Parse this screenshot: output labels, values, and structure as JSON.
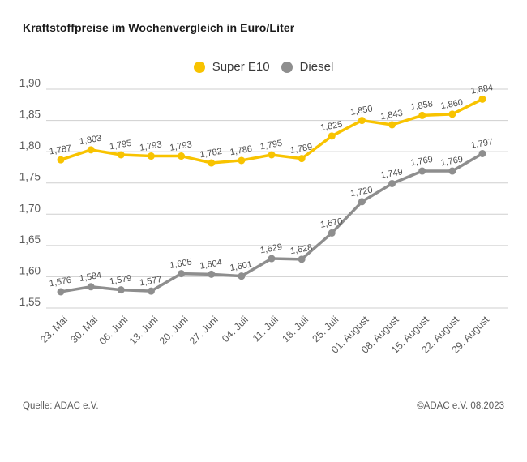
{
  "title": "Kraftstoffpreise im Wochenvergleich in Euro/Liter",
  "footer": {
    "source": "Quelle: ADAC e.V.",
    "copyright": "©ADAC e.V. 08.2023"
  },
  "colors": {
    "super_e10": "#F8C300",
    "diesel": "#8E8E8E",
    "gridline": "#CFCFCF",
    "axis_label": "#5A5A5A",
    "value_label": "#4D4D4D",
    "title_text": "#1A1A1A"
  },
  "chart_data": {
    "type": "line",
    "title": "Kraftstoffpreise im Wochenvergleich in Euro/Liter",
    "categories": [
      "23. Mai",
      "30. Mai",
      "06. Juni",
      "13. Juni",
      "20. Juni",
      "27. Juni",
      "04. Juli",
      "11. Juli",
      "18. Juli",
      "25. Juli",
      "01. August",
      "08. August",
      "15. August",
      "22. August",
      "29. August"
    ],
    "series": [
      {
        "name": "Super E10",
        "color": "#F8C300",
        "values": [
          1.787,
          1.803,
          1.795,
          1.793,
          1.793,
          1.782,
          1.786,
          1.795,
          1.789,
          1.825,
          1.85,
          1.843,
          1.858,
          1.86,
          1.884
        ],
        "labels": [
          "1,787",
          "1,803",
          "1,795",
          "1,793",
          "1,793",
          "1,782",
          "1,786",
          "1,795",
          "1,789",
          "1,825",
          "1,850",
          "1,843",
          "1,858",
          "1,860",
          "1,884"
        ]
      },
      {
        "name": "Diesel",
        "color": "#8E8E8E",
        "values": [
          1.576,
          1.584,
          1.579,
          1.577,
          1.605,
          1.604,
          1.601,
          1.629,
          1.628,
          1.67,
          1.72,
          1.749,
          1.769,
          1.769,
          1.797
        ],
        "labels": [
          "1,576",
          "1,584",
          "1,579",
          "1,577",
          "1,605",
          "1,604",
          "1,601",
          "1,629",
          "1,628",
          "1,670",
          "1,720",
          "1,749",
          "1,769",
          "1,769",
          "1,797"
        ]
      }
    ],
    "xlabel": "",
    "ylabel": "",
    "ylim": [
      1.55,
      1.9
    ],
    "ytick_step": 0.05,
    "ytick_labels": [
      "1,55",
      "1,60",
      "1,65",
      "1,70",
      "1,75",
      "1,80",
      "1,85",
      "1,90"
    ],
    "grid": true,
    "legend_position": "top-center",
    "value_labels": true,
    "x_label_rotation": -45,
    "decimal_separator": ","
  }
}
